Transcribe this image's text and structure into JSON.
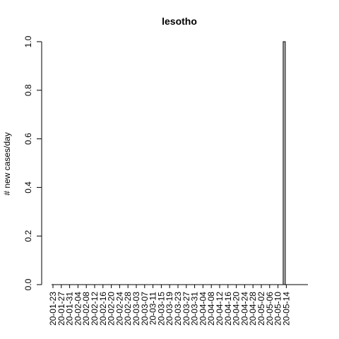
{
  "chart_data": {
    "type": "bar",
    "title": "lesotho",
    "xlabel": "",
    "ylabel": "# new cases/day",
    "ylim": [
      0,
      1
    ],
    "y_ticks": [
      "0.0",
      "0.2",
      "0.4",
      "0.6",
      "0.8",
      "1.0"
    ],
    "x_start": "2020-01-22",
    "x_tick_labels": [
      "20-01-23",
      "20-01-27",
      "20-01-31",
      "20-02-04",
      "20-02-08",
      "20-02-12",
      "20-02-16",
      "20-02-20",
      "20-02-24",
      "20-02-28",
      "20-03-03",
      "20-03-07",
      "20-03-11",
      "20-03-15",
      "20-03-19",
      "20-03-23",
      "20-03-27",
      "20-03-31",
      "20-04-04",
      "20-04-08",
      "20-04-12",
      "20-04-16",
      "20-04-20",
      "20-04-24",
      "20-04-28",
      "20-05-02",
      "20-05-06",
      "20-05-10",
      "20-05-14"
    ],
    "bars": [
      {
        "date": "20-05-13",
        "value": 1
      }
    ],
    "grid": false,
    "bar_fill": "#bebebe",
    "bar_stroke": "#000000"
  }
}
